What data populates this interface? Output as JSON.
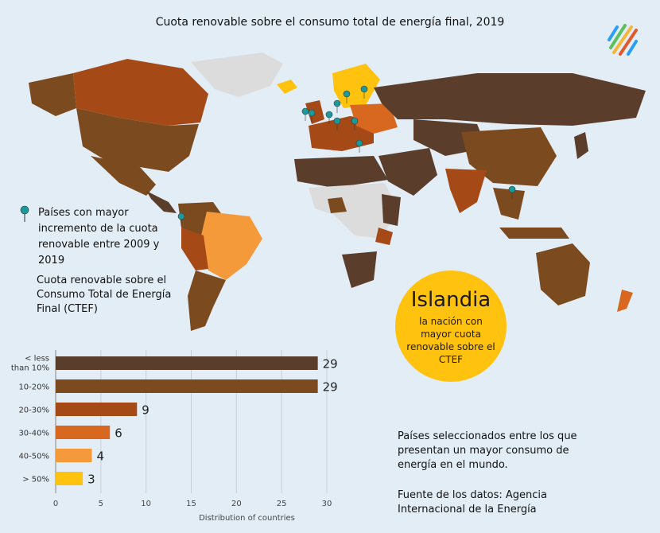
{
  "title": "Cuota renovable sobre el consumo total de energía final, 2019",
  "logo": {
    "icon": "striped-logo-icon",
    "colors": [
      "#2a9df4",
      "#f7b538",
      "#5cc05c",
      "#e0592a"
    ]
  },
  "colors": {
    "lt10": "#5b3d2b",
    "r10_20": "#7b4a1f",
    "r20_30": "#a54a17",
    "r30_40": "#d8671f",
    "r40_50": "#f59a3a",
    "gt50": "#ffc20e",
    "nodata": "#dcdcdc",
    "pin": "#1a9a9a"
  },
  "legend": {
    "pin_text": "Países con mayor incremento de la cuota renovable entre 2009 y 2019",
    "share_text": "Cuota renovable sobre el Consumo Total de Energía Final (CTEF)"
  },
  "highlight": {
    "title": "Islandia",
    "subtitle": "la nación con mayor cuota renovable sobre el CTEF"
  },
  "note": "Países seleccionados entre los que presentan un mayor consumo de energía en el mundo.",
  "source": "Fuente de los datos: Agencia Internacional de la Energía",
  "chart_data": {
    "type": "bar",
    "orientation": "horizontal",
    "categories": [
      "< less than 10%",
      "10-20%",
      "20-30%",
      "30-40%",
      "40-50%",
      "> 50%"
    ],
    "values": [
      29,
      29,
      9,
      6,
      4,
      3
    ],
    "xlabel": "Distribution of countries",
    "xlim": [
      0,
      30
    ],
    "xticks": [
      0,
      5,
      10,
      15,
      20,
      25,
      30
    ],
    "grid": true
  }
}
